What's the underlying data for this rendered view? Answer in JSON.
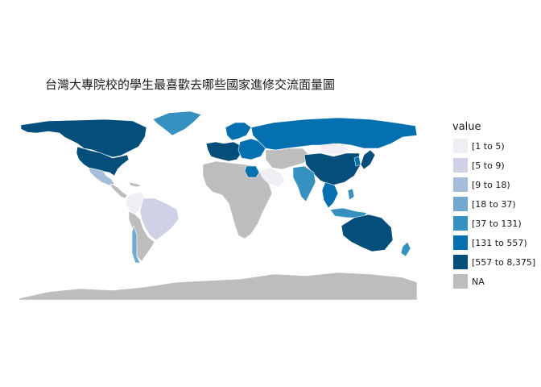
{
  "title": "台灣大專院校的學生最喜歡去哪些國家進修交流面量圖",
  "legend": {
    "title": "value",
    "items": [
      {
        "label": "[1 to 5)",
        "color": "#f1eef6"
      },
      {
        "label": "[5 to 9)",
        "color": "#d0d1e6"
      },
      {
        "label": "[9 to 18)",
        "color": "#a6bddb"
      },
      {
        "label": "[18 to 37)",
        "color": "#74a9cf"
      },
      {
        "label": "[37 to 131)",
        "color": "#3690c0"
      },
      {
        "label": "[131 to 557)",
        "color": "#0570b0"
      },
      {
        "label": "[557 to 8,375]",
        "color": "#034e7b"
      },
      {
        "label": "NA",
        "color": "#bdbdbd"
      }
    ]
  },
  "regions": [
    {
      "name": "Canada",
      "cls": 6
    },
    {
      "name": "United States",
      "cls": 6
    },
    {
      "name": "Greenland",
      "cls": 4
    },
    {
      "name": "Mexico",
      "cls": 2
    },
    {
      "name": "Central America",
      "cls": 7
    },
    {
      "name": "Colombia",
      "cls": 0
    },
    {
      "name": "Brazil",
      "cls": 1
    },
    {
      "name": "South America (other)",
      "cls": 7
    },
    {
      "name": "Chile",
      "cls": 3
    },
    {
      "name": "Western Europe",
      "cls": 6
    },
    {
      "name": "Scandinavia",
      "cls": 5
    },
    {
      "name": "Eastern Europe",
      "cls": 5
    },
    {
      "name": "Russia",
      "cls": 5
    },
    {
      "name": "Africa",
      "cls": 7
    },
    {
      "name": "Egypt",
      "cls": 5
    },
    {
      "name": "Middle East",
      "cls": 0
    },
    {
      "name": "Central Asia",
      "cls": 7
    },
    {
      "name": "Mongolia",
      "cls": 0
    },
    {
      "name": "China",
      "cls": 6
    },
    {
      "name": "India",
      "cls": 4
    },
    {
      "name": "Southeast Asia",
      "cls": 5
    },
    {
      "name": "Japan",
      "cls": 6
    },
    {
      "name": "Korea",
      "cls": 5
    },
    {
      "name": "Philippines",
      "cls": 4
    },
    {
      "name": "Indonesia",
      "cls": 4
    },
    {
      "name": "Australia",
      "cls": 6
    },
    {
      "name": "New Zealand",
      "cls": 4
    },
    {
      "name": "Antarctica",
      "cls": 7
    }
  ]
}
